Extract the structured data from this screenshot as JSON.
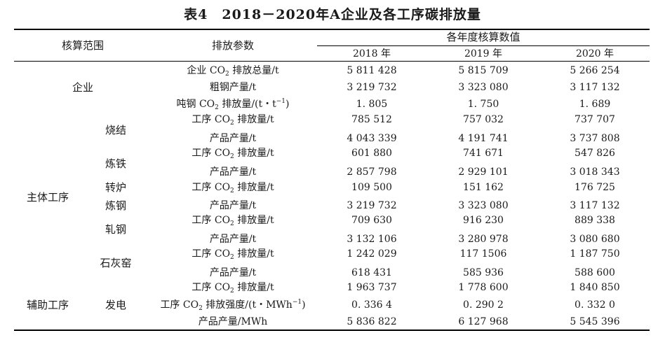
{
  "title": "表4　2018－2020年A企业及各工序碳排放量",
  "header": {
    "scope": "核算范围",
    "param": "排放参数",
    "values_group": "各年度核算数值",
    "years": [
      "2018 年",
      "2019 年",
      "2020 年"
    ]
  },
  "groups": {
    "enterprise": "企业",
    "main_process": "主体工序",
    "aux_process": "辅助工序"
  },
  "processes": {
    "sinter": "烧结",
    "ironmaking": "炼铁",
    "converter": "转炉",
    "steelmaking": "炼钢",
    "rolling": "轧钢",
    "lime_kiln": "石灰窑",
    "power": "发电"
  },
  "rows": [
    {
      "param_pre": "企业 CO",
      "param_sub": "2",
      "param_mid": " 排放总量/t",
      "values": [
        "5 811 428",
        "5 815 709",
        "5 266 254"
      ]
    },
    {
      "param_pre": "粗钢产量/t",
      "values": [
        "3 219 732",
        "3 323 080",
        "3 117 132"
      ]
    },
    {
      "param_pre": "吨钢 CO",
      "param_sub": "2",
      "param_mid": " 排放量/(t・t",
      "param_sup": "−1",
      "param_post": ")",
      "values": [
        "1. 805",
        "1. 750",
        "1. 689"
      ]
    },
    {
      "param_pre": "工序 CO",
      "param_sub": "2",
      "param_mid": " 排放量/t",
      "values": [
        "785 512",
        "757 032",
        "737 707"
      ]
    },
    {
      "param_pre": "产品产量/t",
      "values": [
        "4 043 339",
        "4 191 741",
        "3 737 808"
      ]
    },
    {
      "param_pre": "工序 CO",
      "param_sub": "2",
      "param_mid": " 排放量/t",
      "values": [
        "601 880",
        "741 671",
        "547 826"
      ]
    },
    {
      "param_pre": "产品产量/t",
      "values": [
        "2 857 798",
        "2 929 101",
        "3 018 343"
      ]
    },
    {
      "param_pre": "工序 CO",
      "param_sub": "2",
      "param_mid": " 排放量/t",
      "values": [
        "109 500",
        "151 162",
        "176 725"
      ]
    },
    {
      "param_pre": "产品产量/t",
      "values": [
        "3 219 732",
        "3 323 080",
        "3 117 132"
      ]
    },
    {
      "param_pre": "工序 CO",
      "param_sub": "2",
      "param_mid": " 排放量/t",
      "values": [
        "709 630",
        "916 230",
        "889 338"
      ]
    },
    {
      "param_pre": "产品产量/t",
      "values": [
        "3 132 106",
        "3 280 978",
        "3 080 680"
      ]
    },
    {
      "param_pre": "工序 CO",
      "param_sub": "2",
      "param_mid": " 排放量/t",
      "values": [
        "1 242 029",
        "117 1506",
        "1 187 750"
      ]
    },
    {
      "param_pre": "产品产量/t",
      "values": [
        "618 431",
        "585 936",
        "588 600"
      ]
    },
    {
      "param_pre": "工序 CO",
      "param_sub": "2",
      "param_mid": " 排放量/t",
      "values": [
        "1 963 737",
        "1 778 600",
        "1 840 850"
      ]
    },
    {
      "param_pre": "工序 CO",
      "param_sub": "2",
      "param_mid": " 排放强度/(t・MWh",
      "param_sup": "−1",
      "param_post": ")",
      "values": [
        "0. 336 4",
        "0. 290 2",
        "0. 332 0"
      ]
    },
    {
      "param_pre": "产品产量/MWh",
      "values": [
        "5 836 822",
        "6 127 968",
        "5 545 396"
      ]
    }
  ]
}
